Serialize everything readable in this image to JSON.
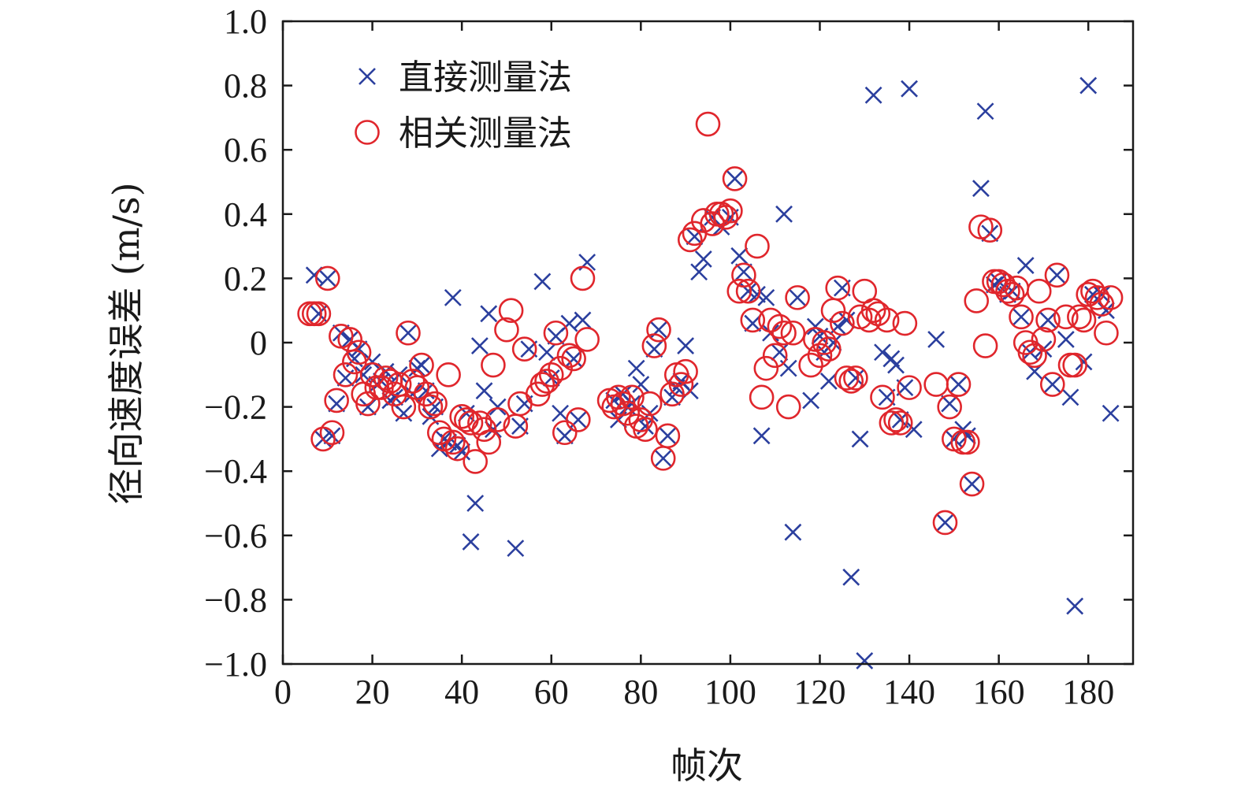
{
  "chart_data": {
    "type": "scatter",
    "xlabel": "帧次",
    "ylabel": "径向速度误差 (m/s)",
    "xlim": [
      0,
      190
    ],
    "ylim": [
      -1.0,
      1.0
    ],
    "xticks": [
      0,
      20,
      40,
      60,
      80,
      100,
      120,
      140,
      160,
      180
    ],
    "yticks": [
      1.0,
      0.8,
      0.6,
      0.4,
      0.2,
      0,
      -0.2,
      -0.4,
      -0.6,
      -0.8,
      -1.0
    ],
    "ytick_labels": [
      "1.0",
      "0.8",
      "0.6",
      "0.4",
      "0.2",
      "0",
      "−0.2",
      "−0.4",
      "−0.6",
      "−0.8",
      "−1.0"
    ],
    "xtick_labels": [
      "0",
      "20",
      "40",
      "60",
      "80",
      "100",
      "120",
      "140",
      "160",
      "180"
    ],
    "grid": false,
    "legend_position": "top-left",
    "series": [
      {
        "name": "直接测量法",
        "marker": "x",
        "color": "#2b3f9e",
        "points": [
          [
            7,
            0.21
          ],
          [
            8,
            0.09
          ],
          [
            9,
            -0.3
          ],
          [
            10,
            0.2
          ],
          [
            11,
            -0.29
          ],
          [
            12,
            -0.19
          ],
          [
            13,
            0.03
          ],
          [
            14,
            -0.11
          ],
          [
            15,
            0.01
          ],
          [
            16,
            -0.05
          ],
          [
            17,
            -0.02
          ],
          [
            18,
            -0.1
          ],
          [
            19,
            -0.2
          ],
          [
            20,
            -0.06
          ],
          [
            21,
            -0.13
          ],
          [
            22,
            -0.12
          ],
          [
            23,
            -0.09
          ],
          [
            24,
            -0.18
          ],
          [
            25,
            -0.17
          ],
          [
            26,
            -0.1
          ],
          [
            27,
            -0.22
          ],
          [
            28,
            0.03
          ],
          [
            29,
            -0.16
          ],
          [
            30,
            -0.08
          ],
          [
            31,
            -0.07
          ],
          [
            32,
            -0.15
          ],
          [
            33,
            -0.23
          ],
          [
            34,
            -0.2
          ],
          [
            35,
            -0.33
          ],
          [
            36,
            -0.3
          ],
          [
            37,
            -0.31
          ],
          [
            38,
            0.14
          ],
          [
            39,
            -0.32
          ],
          [
            40,
            -0.34
          ],
          [
            41,
            -0.22
          ],
          [
            42,
            -0.62
          ],
          [
            43,
            -0.5
          ],
          [
            44,
            -0.01
          ],
          [
            45,
            -0.15
          ],
          [
            46,
            0.09
          ],
          [
            47,
            -0.27
          ],
          [
            48,
            -0.2
          ],
          [
            52,
            -0.64
          ],
          [
            53,
            -0.26
          ],
          [
            54,
            -0.19
          ],
          [
            55,
            -0.02
          ],
          [
            58,
            0.19
          ],
          [
            59,
            -0.03
          ],
          [
            60,
            -0.11
          ],
          [
            61,
            0.02
          ],
          [
            62,
            -0.22
          ],
          [
            63,
            -0.29
          ],
          [
            64,
            0.06
          ],
          [
            65,
            -0.05
          ],
          [
            66,
            -0.24
          ],
          [
            67,
            0.07
          ],
          [
            68,
            0.25
          ],
          [
            74,
            -0.18
          ],
          [
            75,
            -0.24
          ],
          [
            76,
            -0.16
          ],
          [
            77,
            -0.2
          ],
          [
            78,
            -0.19
          ],
          [
            79,
            -0.08
          ],
          [
            80,
            -0.13
          ],
          [
            81,
            -0.26
          ],
          [
            82,
            -0.22
          ],
          [
            83,
            -0.02
          ],
          [
            84,
            0.04
          ],
          [
            85,
            -0.36
          ],
          [
            86,
            -0.29
          ],
          [
            87,
            -0.17
          ],
          [
            88,
            -0.14
          ],
          [
            89,
            -0.12
          ],
          [
            90,
            -0.01
          ],
          [
            91,
            -0.15
          ],
          [
            92,
            0.33
          ],
          [
            93,
            0.22
          ],
          [
            94,
            0.26
          ],
          [
            96,
            0.39
          ],
          [
            98,
            0.36
          ],
          [
            100,
            0.39
          ],
          [
            101,
            0.51
          ],
          [
            102,
            0.27
          ],
          [
            103,
            0.22
          ],
          [
            104,
            0.16
          ],
          [
            105,
            0.06
          ],
          [
            106,
            0.15
          ],
          [
            107,
            -0.29
          ],
          [
            108,
            0.14
          ],
          [
            109,
            0.03
          ],
          [
            111,
            -0.03
          ],
          [
            112,
            0.4
          ],
          [
            113,
            -0.08
          ],
          [
            114,
            -0.59
          ],
          [
            115,
            0.14
          ],
          [
            118,
            -0.18
          ],
          [
            119,
            0.05
          ],
          [
            120,
            0.02
          ],
          [
            121,
            -0.03
          ],
          [
            122,
            -0.12
          ],
          [
            123,
            0.0
          ],
          [
            124,
            0.05
          ],
          [
            125,
            0.17
          ],
          [
            126,
            0.07
          ],
          [
            127,
            -0.73
          ],
          [
            128,
            -0.11
          ],
          [
            129,
            -0.3
          ],
          [
            130,
            -0.99
          ],
          [
            132,
            0.77
          ],
          [
            134,
            -0.03
          ],
          [
            135,
            -0.17
          ],
          [
            136,
            -0.05
          ],
          [
            137,
            -0.07
          ],
          [
            138,
            -0.24
          ],
          [
            139,
            -0.14
          ],
          [
            140,
            0.79
          ],
          [
            141,
            -0.27
          ],
          [
            146,
            0.01
          ],
          [
            148,
            -0.56
          ],
          [
            149,
            -0.19
          ],
          [
            150,
            -0.3
          ],
          [
            151,
            -0.13
          ],
          [
            152,
            -0.27
          ],
          [
            153,
            -0.29
          ],
          [
            154,
            -0.44
          ],
          [
            156,
            0.48
          ],
          [
            157,
            0.72
          ],
          [
            158,
            0.34
          ],
          [
            159,
            0.18
          ],
          [
            160,
            0.19
          ],
          [
            162,
            0.15
          ],
          [
            163,
            0.16
          ],
          [
            165,
            0.08
          ],
          [
            166,
            0.24
          ],
          [
            167,
            -0.03
          ],
          [
            168,
            -0.09
          ],
          [
            170,
            -0.02
          ],
          [
            171,
            0.07
          ],
          [
            172,
            -0.13
          ],
          [
            173,
            0.21
          ],
          [
            175,
            0.01
          ],
          [
            176,
            -0.17
          ],
          [
            177,
            -0.82
          ],
          [
            179,
            -0.06
          ],
          [
            180,
            0.8
          ],
          [
            181,
            0.15
          ],
          [
            183,
            0.15
          ],
          [
            184,
            0.1
          ],
          [
            185,
            -0.22
          ]
        ]
      },
      {
        "name": "相关测量法",
        "marker": "o",
        "color": "#e0262c",
        "points": [
          [
            6,
            0.09
          ],
          [
            7,
            0.09
          ],
          [
            8,
            0.09
          ],
          [
            9,
            -0.3
          ],
          [
            10,
            0.2
          ],
          [
            11,
            -0.28
          ],
          [
            12,
            -0.18
          ],
          [
            13,
            0.02
          ],
          [
            14,
            -0.1
          ],
          [
            15,
            0.01
          ],
          [
            16,
            -0.06
          ],
          [
            17,
            -0.03
          ],
          [
            18,
            -0.16
          ],
          [
            19,
            -0.19
          ],
          [
            20,
            -0.1
          ],
          [
            21,
            -0.14
          ],
          [
            22,
            -0.14
          ],
          [
            23,
            -0.11
          ],
          [
            24,
            -0.12
          ],
          [
            25,
            -0.16
          ],
          [
            26,
            -0.13
          ],
          [
            27,
            -0.2
          ],
          [
            28,
            0.03
          ],
          [
            29,
            -0.12
          ],
          [
            30,
            -0.14
          ],
          [
            31,
            -0.07
          ],
          [
            32,
            -0.16
          ],
          [
            33,
            -0.2
          ],
          [
            34,
            -0.19
          ],
          [
            35,
            -0.28
          ],
          [
            36,
            -0.3
          ],
          [
            37,
            -0.1
          ],
          [
            38,
            -0.31
          ],
          [
            39,
            -0.33
          ],
          [
            40,
            -0.23
          ],
          [
            41,
            -0.24
          ],
          [
            42,
            -0.25
          ],
          [
            43,
            -0.37
          ],
          [
            44,
            -0.25
          ],
          [
            45,
            -0.27
          ],
          [
            46,
            -0.31
          ],
          [
            47,
            -0.07
          ],
          [
            48,
            -0.24
          ],
          [
            50,
            0.04
          ],
          [
            51,
            0.1
          ],
          [
            52,
            -0.26
          ],
          [
            53,
            -0.19
          ],
          [
            54,
            -0.02
          ],
          [
            57,
            -0.16
          ],
          [
            58,
            -0.13
          ],
          [
            59,
            -0.12
          ],
          [
            60,
            -0.1
          ],
          [
            61,
            0.03
          ],
          [
            62,
            -0.08
          ],
          [
            63,
            -0.28
          ],
          [
            64,
            -0.04
          ],
          [
            65,
            -0.05
          ],
          [
            66,
            -0.24
          ],
          [
            67,
            0.2
          ],
          [
            68,
            0.01
          ],
          [
            73,
            -0.18
          ],
          [
            74,
            -0.2
          ],
          [
            75,
            -0.17
          ],
          [
            76,
            -0.19
          ],
          [
            77,
            -0.22
          ],
          [
            78,
            -0.17
          ],
          [
            79,
            -0.26
          ],
          [
            80,
            -0.24
          ],
          [
            81,
            -0.27
          ],
          [
            82,
            -0.19
          ],
          [
            83,
            -0.01
          ],
          [
            84,
            0.04
          ],
          [
            85,
            -0.36
          ],
          [
            86,
            -0.29
          ],
          [
            87,
            -0.16
          ],
          [
            88,
            -0.1
          ],
          [
            89,
            -0.13
          ],
          [
            90,
            -0.09
          ],
          [
            91,
            0.32
          ],
          [
            92,
            0.34
          ],
          [
            94,
            0.38
          ],
          [
            95,
            0.68
          ],
          [
            96,
            0.37
          ],
          [
            97,
            0.4
          ],
          [
            98,
            0.4
          ],
          [
            99,
            0.39
          ],
          [
            100,
            0.41
          ],
          [
            101,
            0.51
          ],
          [
            102,
            0.16
          ],
          [
            103,
            0.21
          ],
          [
            104,
            0.16
          ],
          [
            105,
            0.07
          ],
          [
            106,
            0.3
          ],
          [
            107,
            -0.17
          ],
          [
            108,
            -0.08
          ],
          [
            109,
            0.07
          ],
          [
            110,
            -0.04
          ],
          [
            111,
            0.05
          ],
          [
            112,
            0.03
          ],
          [
            113,
            -0.2
          ],
          [
            114,
            0.03
          ],
          [
            115,
            0.14
          ],
          [
            118,
            -0.07
          ],
          [
            119,
            0.01
          ],
          [
            120,
            -0.04
          ],
          [
            121,
            0.0
          ],
          [
            122,
            -0.02
          ],
          [
            123,
            0.1
          ],
          [
            124,
            0.17
          ],
          [
            125,
            0.06
          ],
          [
            126,
            -0.11
          ],
          [
            127,
            -0.12
          ],
          [
            128,
            -0.11
          ],
          [
            129,
            0.08
          ],
          [
            130,
            0.16
          ],
          [
            131,
            0.07
          ],
          [
            132,
            0.1
          ],
          [
            133,
            0.09
          ],
          [
            134,
            -0.17
          ],
          [
            135,
            0.07
          ],
          [
            136,
            -0.25
          ],
          [
            137,
            -0.24
          ],
          [
            138,
            -0.25
          ],
          [
            139,
            0.06
          ],
          [
            140,
            -0.14
          ],
          [
            146,
            -0.13
          ],
          [
            148,
            -0.56
          ],
          [
            149,
            -0.2
          ],
          [
            150,
            -0.3
          ],
          [
            151,
            -0.13
          ],
          [
            152,
            -0.31
          ],
          [
            153,
            -0.31
          ],
          [
            154,
            -0.44
          ],
          [
            155,
            0.13
          ],
          [
            156,
            0.36
          ],
          [
            157,
            -0.01
          ],
          [
            158,
            0.35
          ],
          [
            159,
            0.19
          ],
          [
            160,
            0.19
          ],
          [
            161,
            0.18
          ],
          [
            162,
            0.16
          ],
          [
            163,
            0.15
          ],
          [
            164,
            0.17
          ],
          [
            165,
            0.08
          ],
          [
            166,
            0.0
          ],
          [
            167,
            -0.03
          ],
          [
            168,
            -0.04
          ],
          [
            169,
            0.16
          ],
          [
            170,
            0.01
          ],
          [
            171,
            0.07
          ],
          [
            172,
            -0.13
          ],
          [
            173,
            0.21
          ],
          [
            175,
            0.08
          ],
          [
            176,
            -0.07
          ],
          [
            177,
            -0.07
          ],
          [
            178,
            0.08
          ],
          [
            179,
            0.07
          ],
          [
            180,
            0.15
          ],
          [
            181,
            0.16
          ],
          [
            182,
            0.14
          ],
          [
            183,
            0.12
          ],
          [
            184,
            0.03
          ],
          [
            185,
            0.14
          ]
        ]
      }
    ]
  }
}
